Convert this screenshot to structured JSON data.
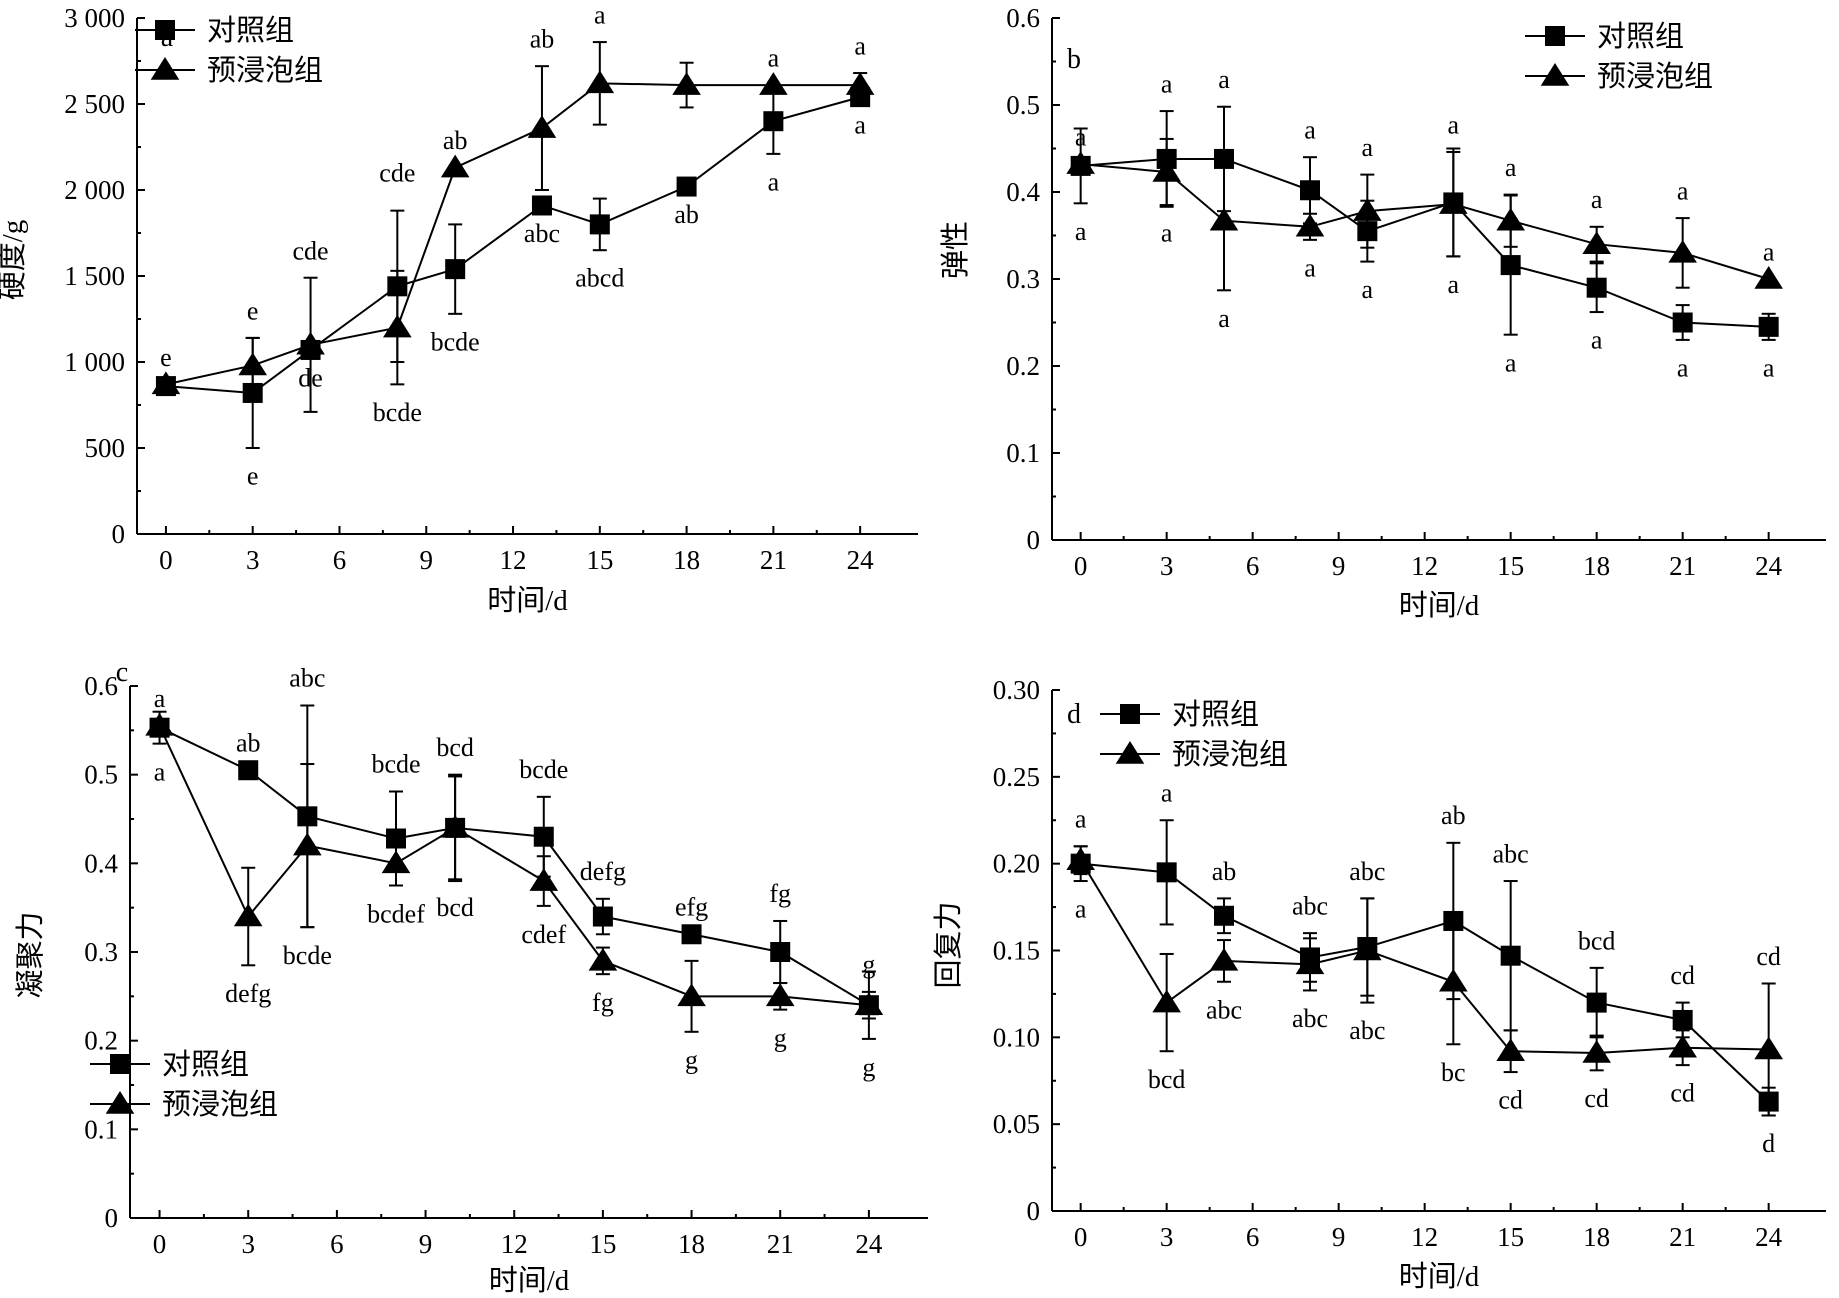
{
  "chart_data": [
    {
      "type": "line",
      "panel": "a",
      "xlabel": "时间/d",
      "ylabel": "硬度/g",
      "xlim": [
        -1,
        26
      ],
      "ylim": [
        0,
        3000
      ],
      "xticks": [
        0,
        3,
        6,
        9,
        12,
        15,
        18,
        21,
        24
      ],
      "yticks": [
        0,
        500,
        1000,
        1500,
        2000,
        2500,
        3000
      ],
      "ytick_labels": [
        "0",
        "500",
        "1 000",
        "1 500",
        "2 000",
        "2 500",
        "3 000"
      ],
      "legend_position": "top-left",
      "series": [
        {
          "name": "对照组",
          "marker": "square",
          "x": [
            0,
            3,
            5,
            8,
            10,
            13,
            15,
            18,
            21,
            24
          ],
          "y": [
            860,
            820,
            1070,
            1440,
            1540,
            1910,
            1800,
            2020,
            2400,
            2540
          ],
          "error": [
            30,
            320,
            0,
            440,
            260,
            0,
            150,
            0,
            190,
            0
          ],
          "labels": [
            "",
            "e",
            "de",
            "",
            "bcde",
            "abc",
            "abcd",
            "ab",
            "a",
            "a"
          ]
        },
        {
          "name": "预浸泡组",
          "marker": "triangle",
          "x": [
            0,
            3,
            5,
            8,
            10,
            13,
            15,
            18,
            21,
            24
          ],
          "y": [
            870,
            980,
            1100,
            1200,
            2130,
            2360,
            2620,
            2610,
            2610,
            2610
          ],
          "error": [
            0,
            160,
            390,
            330,
            0,
            360,
            240,
            130,
            0,
            70
          ],
          "labels": [
            "e",
            "e",
            "cde",
            "bcde",
            "ab",
            "ab",
            "a",
            "",
            "a",
            "a"
          ]
        }
      ],
      "extra_labels": [
        {
          "text": "cde",
          "x": 8,
          "y": 2050
        }
      ]
    },
    {
      "type": "line",
      "panel": "b",
      "xlabel": "时间/d",
      "ylabel": "弹性",
      "xlim": [
        -1,
        26
      ],
      "ylim": [
        0,
        0.6
      ],
      "xticks": [
        0,
        3,
        6,
        9,
        12,
        15,
        18,
        21,
        24
      ],
      "yticks": [
        0,
        0.1,
        0.2,
        0.3,
        0.4,
        0.5,
        0.6
      ],
      "ytick_labels": [
        "0",
        "0.1",
        "0.2",
        "0.3",
        "0.4",
        "0.5",
        "0.6"
      ],
      "legend_position": "top-right",
      "series": [
        {
          "name": "对照组",
          "marker": "square",
          "x": [
            0,
            3,
            5,
            8,
            10,
            13,
            15,
            18,
            21,
            24
          ],
          "y": [
            0.43,
            0.438,
            0.438,
            0.402,
            0.355,
            0.388,
            0.316,
            0.29,
            0.25,
            0.245
          ],
          "error": [
            0.043,
            0.055,
            0.06,
            0.038,
            0.035,
            0.062,
            0.08,
            0.028,
            0.02,
            0.015
          ],
          "labels": [
            "a",
            "a",
            "a",
            "a",
            "a",
            "a",
            "a",
            "a",
            "a",
            "a"
          ]
        },
        {
          "name": "预浸泡组",
          "marker": "triangle",
          "x": [
            0,
            3,
            5,
            8,
            10,
            13,
            15,
            18,
            21,
            24
          ],
          "y": [
            0.432,
            0.423,
            0.367,
            0.36,
            0.378,
            0.386,
            0.367,
            0.34,
            0.33,
            0.3
          ],
          "error": [
            0,
            0.038,
            0.08,
            0.015,
            0.042,
            0.06,
            0.03,
            0.02,
            0.04,
            0
          ],
          "labels": [
            "a",
            "a",
            "a",
            "a",
            "a",
            "a",
            "a",
            "a",
            "a",
            "a"
          ]
        }
      ]
    },
    {
      "type": "line",
      "panel": "c",
      "xlabel": "时间/d",
      "ylabel": "凝聚力",
      "xlim": [
        -1,
        26
      ],
      "ylim": [
        0,
        0.6
      ],
      "xticks": [
        0,
        3,
        6,
        9,
        12,
        15,
        18,
        21,
        24
      ],
      "yticks": [
        0,
        0.1,
        0.2,
        0.3,
        0.4,
        0.5,
        0.6
      ],
      "ytick_labels": [
        "0",
        "0.1",
        "0.2",
        "0.3",
        "0.4",
        "0.5",
        "0.6"
      ],
      "legend_position": "bottom-left",
      "series": [
        {
          "name": "对照组",
          "marker": "square",
          "x": [
            0,
            3,
            5,
            8,
            10,
            13,
            15,
            18,
            21,
            24
          ],
          "y": [
            0.553,
            0.505,
            0.453,
            0.428,
            0.44,
            0.43,
            0.34,
            0.32,
            0.3,
            0.24
          ],
          "error": [
            0.018,
            0,
            0.125,
            0.053,
            0.058,
            0.045,
            0.02,
            0,
            0.035,
            0.038
          ],
          "labels": [
            "a",
            "ab",
            "abc",
            "bcde",
            "bcd",
            "bcde",
            "defg",
            "efg",
            "fg",
            "g"
          ]
        },
        {
          "name": "预浸泡组",
          "marker": "triangle",
          "x": [
            0,
            3,
            5,
            8,
            10,
            13,
            15,
            18,
            21,
            24
          ],
          "y": [
            0.555,
            0.34,
            0.42,
            0.4,
            0.44,
            0.38,
            0.29,
            0.25,
            0.25,
            0.24
          ],
          "error": [
            0,
            0.055,
            0.092,
            0.025,
            0.06,
            0.028,
            0.015,
            0.04,
            0.015,
            0.015
          ],
          "labels": [
            "a",
            "defg",
            "bcde",
            "bcdef",
            "bcd",
            "cdef",
            "fg",
            "g",
            "g",
            "g"
          ]
        }
      ]
    },
    {
      "type": "line",
      "panel": "d",
      "xlabel": "时间/d",
      "ylabel": "回复力",
      "xlim": [
        -1,
        26
      ],
      "ylim": [
        0,
        0.3
      ],
      "xticks": [
        0,
        3,
        6,
        9,
        12,
        15,
        18,
        21,
        24
      ],
      "yticks": [
        0,
        0.05,
        0.1,
        0.15,
        0.2,
        0.25,
        0.3
      ],
      "ytick_labels": [
        "0",
        "0.05",
        "0.10",
        "0.15",
        "0.20",
        "0.25",
        "0.30"
      ],
      "legend_position": "top-left",
      "series": [
        {
          "name": "对照组",
          "marker": "square",
          "x": [
            0,
            3,
            5,
            8,
            10,
            13,
            15,
            18,
            21,
            24
          ],
          "y": [
            0.2,
            0.195,
            0.17,
            0.146,
            0.152,
            0.167,
            0.147,
            0.12,
            0.11,
            0.063
          ],
          "error": [
            0.01,
            0.03,
            0.01,
            0.014,
            0.028,
            0.045,
            0.043,
            0.02,
            0.01,
            0.008
          ],
          "labels": [
            "a",
            "a",
            "ab",
            "abc",
            "abc",
            "ab",
            "abc",
            "bcd",
            "cd",
            "d"
          ]
        },
        {
          "name": "预浸泡组",
          "marker": "triangle",
          "x": [
            0,
            3,
            5,
            8,
            10,
            13,
            15,
            18,
            21,
            24
          ],
          "y": [
            0.202,
            0.12,
            0.144,
            0.142,
            0.15,
            0.132,
            0.092,
            0.091,
            0.094,
            0.093
          ],
          "error": [
            0.008,
            0.028,
            0.012,
            0.015,
            0.03,
            0.036,
            0.012,
            0.01,
            0.01,
            0.038
          ],
          "labels": [
            "a",
            "bcd",
            "abc",
            "abc",
            "abc",
            "bc",
            "cd",
            "cd",
            "cd",
            "cd"
          ]
        }
      ]
    }
  ]
}
